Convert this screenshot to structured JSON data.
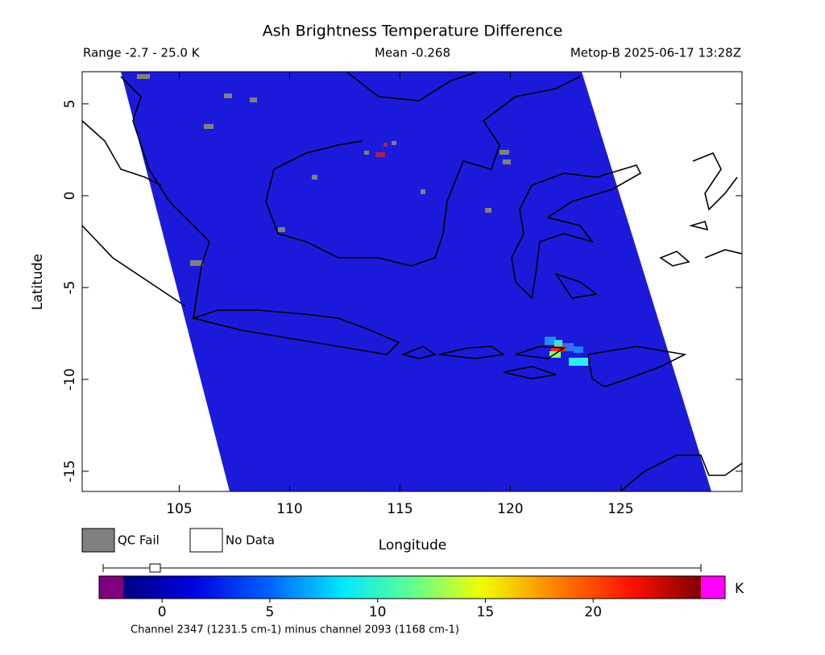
{
  "title": "Ash Brightness Temperature Difference",
  "header": {
    "range": "Range -2.7 - 25.0 K",
    "mean": "Mean -0.268",
    "satellite": "Metop-B 2025-06-17 13:28Z"
  },
  "map": {
    "xlabel": "Longitude",
    "ylabel": "Latitude",
    "xlim": [
      100.6,
      130.5
    ],
    "ylim": [
      -16.1,
      6.75
    ],
    "xticks": [
      105,
      110,
      115,
      120,
      125
    ],
    "yticks": [
      5,
      0,
      -5,
      -10,
      -15
    ]
  },
  "legend": {
    "qc_fail": "QC Fail",
    "no_data": "No Data"
  },
  "colorbar": {
    "lim": [
      -1.8,
      25
    ],
    "ticks": [
      0,
      5,
      10,
      15,
      20
    ],
    "unit": "K"
  },
  "caption": "Channel 2347 (1231.5 cm-1) minus channel 2093 (1168 cm-1)"
}
